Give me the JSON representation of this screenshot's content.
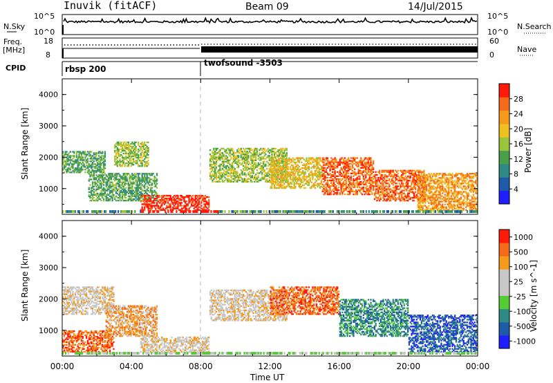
{
  "header": {
    "station": "Inuvik (fitACF)",
    "beam": "Beam 09",
    "date": "14/Jul/2015"
  },
  "top_panels": {
    "nsky_label": "N.Sky",
    "nsky_ticks": [
      "10^5",
      "10^0"
    ],
    "nsearch_label": "N.Search",
    "nsearch_ticks": [
      "10^5",
      "10^0"
    ],
    "freq_label": "Freq.",
    "freq_unit": "[MHz]",
    "freq_ticks": [
      "18",
      "8"
    ],
    "nave_label": "Nave",
    "nave_ticks": [
      "60",
      "0"
    ],
    "cpid_label": "CPID",
    "cpid_segments": [
      {
        "name": "rbsp 200",
        "start_hour": 0,
        "end_hour": 8
      },
      {
        "name": "twofsound -3503",
        "start_hour": 8,
        "end_hour": 24
      }
    ]
  },
  "colors": {
    "power": [
      "#1e1eff",
      "#1f5aa8",
      "#2f8a86",
      "#4aa04a",
      "#9ac43a",
      "#f0c020",
      "#f59a1a",
      "#f56a1a",
      "#ff1a0a"
    ],
    "velocity": [
      "#ff1a0a",
      "#f56a1a",
      "#f59a1a",
      "#c8c8c8",
      "#c8c8c8",
      "#55cc33",
      "#2f8a86",
      "#1f5aa8",
      "#1e1eff"
    ]
  },
  "chart_data": [
    {
      "type": "heatmap",
      "title": "",
      "xlabel": "",
      "ylabel": "Slant Range [km]",
      "xlim": [
        0,
        24
      ],
      "ylim": [
        180,
        4500
      ],
      "x_ticks": [
        0,
        4,
        8,
        12,
        16,
        20,
        24
      ],
      "y_ticks": [
        1000,
        2000,
        3000,
        4000
      ],
      "colorbar_label": "Power [dB]",
      "colorbar_ticks": [
        "4",
        "8",
        "12",
        "16",
        "20",
        "24",
        "28"
      ],
      "approx_regions": [
        {
          "t0": 0.0,
          "t1": 2.5,
          "r0": 1500,
          "r1": 2200,
          "level": 3
        },
        {
          "t0": 1.5,
          "t1": 5.5,
          "r0": 600,
          "r1": 1500,
          "level": 3
        },
        {
          "t0": 3.0,
          "t1": 5.0,
          "r0": 1700,
          "r1": 2500,
          "level": 4
        },
        {
          "t0": 4.5,
          "t1": 8.5,
          "r0": 300,
          "r1": 800,
          "level": 8
        },
        {
          "t0": 8.5,
          "t1": 13.0,
          "r0": 1200,
          "r1": 2300,
          "level": 4
        },
        {
          "t0": 12.0,
          "t1": 15.0,
          "r0": 1000,
          "r1": 2000,
          "level": 5
        },
        {
          "t0": 15.0,
          "t1": 18.0,
          "r0": 800,
          "r1": 2000,
          "level": 7
        },
        {
          "t0": 18.0,
          "t1": 21.0,
          "r0": 600,
          "r1": 1600,
          "level": 7
        },
        {
          "t0": 20.5,
          "t1": 24.0,
          "r0": 300,
          "r1": 1500,
          "level": 6
        }
      ]
    },
    {
      "type": "heatmap",
      "title": "",
      "xlabel": "Time UT",
      "ylabel": "Slant Range [km]",
      "xlim": [
        0,
        24
      ],
      "ylim": [
        180,
        4500
      ],
      "x_ticks": [
        0,
        4,
        8,
        12,
        16,
        20,
        24
      ],
      "x_tick_labels": [
        "00:00",
        "04:00",
        "08:00",
        "12:00",
        "16:00",
        "20:00",
        "00:00"
      ],
      "y_ticks": [
        1000,
        2000,
        3000,
        4000
      ],
      "colorbar_label": "Velocity [m s^-1]",
      "colorbar_ticks": [
        "1000",
        "500",
        "100",
        "25",
        "-25",
        "-100",
        "-500",
        "-1000"
      ],
      "approx_regions": [
        {
          "t0": 0.0,
          "t1": 3.0,
          "r0": 1500,
          "r1": 2400,
          "level": 3
        },
        {
          "t0": 0.0,
          "t1": 3.0,
          "r0": 300,
          "r1": 1000,
          "level": 1
        },
        {
          "t0": 2.5,
          "t1": 5.5,
          "r0": 800,
          "r1": 1800,
          "level": 2
        },
        {
          "t0": 4.5,
          "t1": 8.5,
          "r0": 300,
          "r1": 800,
          "level": 3
        },
        {
          "t0": 8.5,
          "t1": 13.0,
          "r0": 1300,
          "r1": 2300,
          "level": 3
        },
        {
          "t0": 12.0,
          "t1": 16.0,
          "r0": 1500,
          "r1": 2400,
          "level": 1
        },
        {
          "t0": 16.0,
          "t1": 20.0,
          "r0": 800,
          "r1": 2000,
          "level": 6
        },
        {
          "t0": 20.0,
          "t1": 24.0,
          "r0": 300,
          "r1": 1500,
          "level": 7
        }
      ]
    }
  ]
}
